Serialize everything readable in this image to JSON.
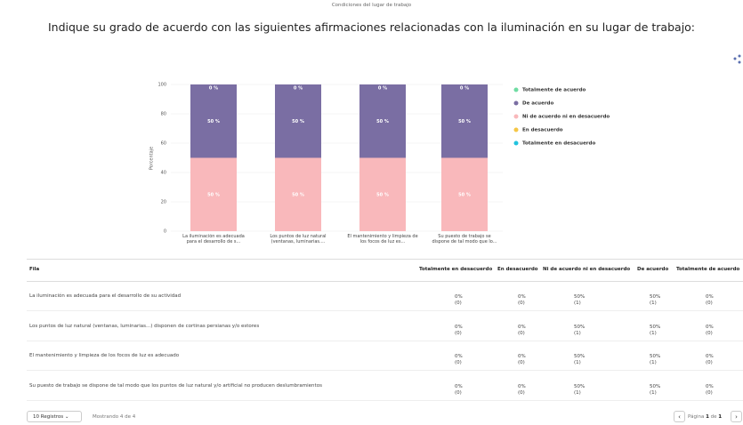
{
  "header": {
    "subtitle": "Condiciones del lugar de trabajo",
    "title": "Indique su grado de acuerdo con las siguientes afirmaciones relacionadas con la iluminación en su lugar de trabajo:"
  },
  "chart_data": {
    "type": "stacked_bar",
    "ylabel": "Porcentaje",
    "ylim": [
      0,
      100
    ],
    "yticks": [
      0,
      20,
      40,
      60,
      80,
      100
    ],
    "categories": [
      "La iluminación es adecuada para el desarrollo de s...",
      "Los puntos de luz natural (ventanas, luminarias....",
      "El mantenimiento y limpieza de los focos de luz es...",
      "Su puesto de trabajo se dispone de tal modo que lo..."
    ],
    "series": [
      {
        "name": "Totalmente de acuerdo",
        "color": "#6fdca3",
        "values": [
          0,
          0,
          0,
          0
        ],
        "value_labels": [
          "0 %",
          "0 %",
          "0 %",
          "0 %"
        ]
      },
      {
        "name": "De acuerdo",
        "color": "#7a6ea3",
        "values": [
          50,
          50,
          50,
          50
        ],
        "value_labels": [
          "50 %",
          "50 %",
          "50 %",
          "50 %"
        ]
      },
      {
        "name": "Ni de acuerdo ni en desacuerdo",
        "color": "#f9b8bb",
        "values": [
          50,
          50,
          50,
          50
        ],
        "value_labels": [
          "50 %",
          "50 %",
          "50 %",
          "50 %"
        ]
      },
      {
        "name": "En desacuerdo",
        "color": "#f5c646",
        "values": [
          0,
          0,
          0,
          0
        ]
      },
      {
        "name": "Totalmente en desacuerdo",
        "color": "#22c3de",
        "values": [
          0,
          0,
          0,
          0
        ]
      }
    ]
  },
  "table": {
    "columns": [
      "Fila",
      "Totalmente en desacuerdo",
      "En desacuerdo",
      "Ni de acuerdo ni en desacuerdo",
      "De acuerdo",
      "Totalmente de acuerdo"
    ],
    "rows": [
      {
        "label": "La iluminación es adecuada para el desarrollo de su actividad",
        "cells": [
          [
            "0%",
            "(0)"
          ],
          [
            "0%",
            "(0)"
          ],
          [
            "50%",
            "(1)"
          ],
          [
            "50%",
            "(1)"
          ],
          [
            "0%",
            "(0)"
          ]
        ]
      },
      {
        "label": "Los puntos de luz natural (ventanas, luminarias...) disponen de cortinas persianas y/o estores",
        "cells": [
          [
            "0%",
            "(0)"
          ],
          [
            "0%",
            "(0)"
          ],
          [
            "50%",
            "(1)"
          ],
          [
            "50%",
            "(1)"
          ],
          [
            "0%",
            "(0)"
          ]
        ]
      },
      {
        "label": "El mantenimiento y limpieza de los focos de luz es adecuado",
        "cells": [
          [
            "0%",
            "(0)"
          ],
          [
            "0%",
            "(0)"
          ],
          [
            "50%",
            "(1)"
          ],
          [
            "50%",
            "(1)"
          ],
          [
            "0%",
            "(0)"
          ]
        ]
      },
      {
        "label": "Su puesto de trabajo se dispone de tal modo que los puntos de luz natural y/o artificial no producen deslumbramientos",
        "cells": [
          [
            "0%",
            "(0)"
          ],
          [
            "0%",
            "(0)"
          ],
          [
            "50%",
            "(1)"
          ],
          [
            "50%",
            "(1)"
          ],
          [
            "0%",
            "(0)"
          ]
        ]
      }
    ]
  },
  "footer": {
    "page_size": "10 Registros",
    "showing": "Mostrando 4 de 4",
    "page_label": "Página",
    "page": "1",
    "of": "de",
    "total": "1"
  }
}
